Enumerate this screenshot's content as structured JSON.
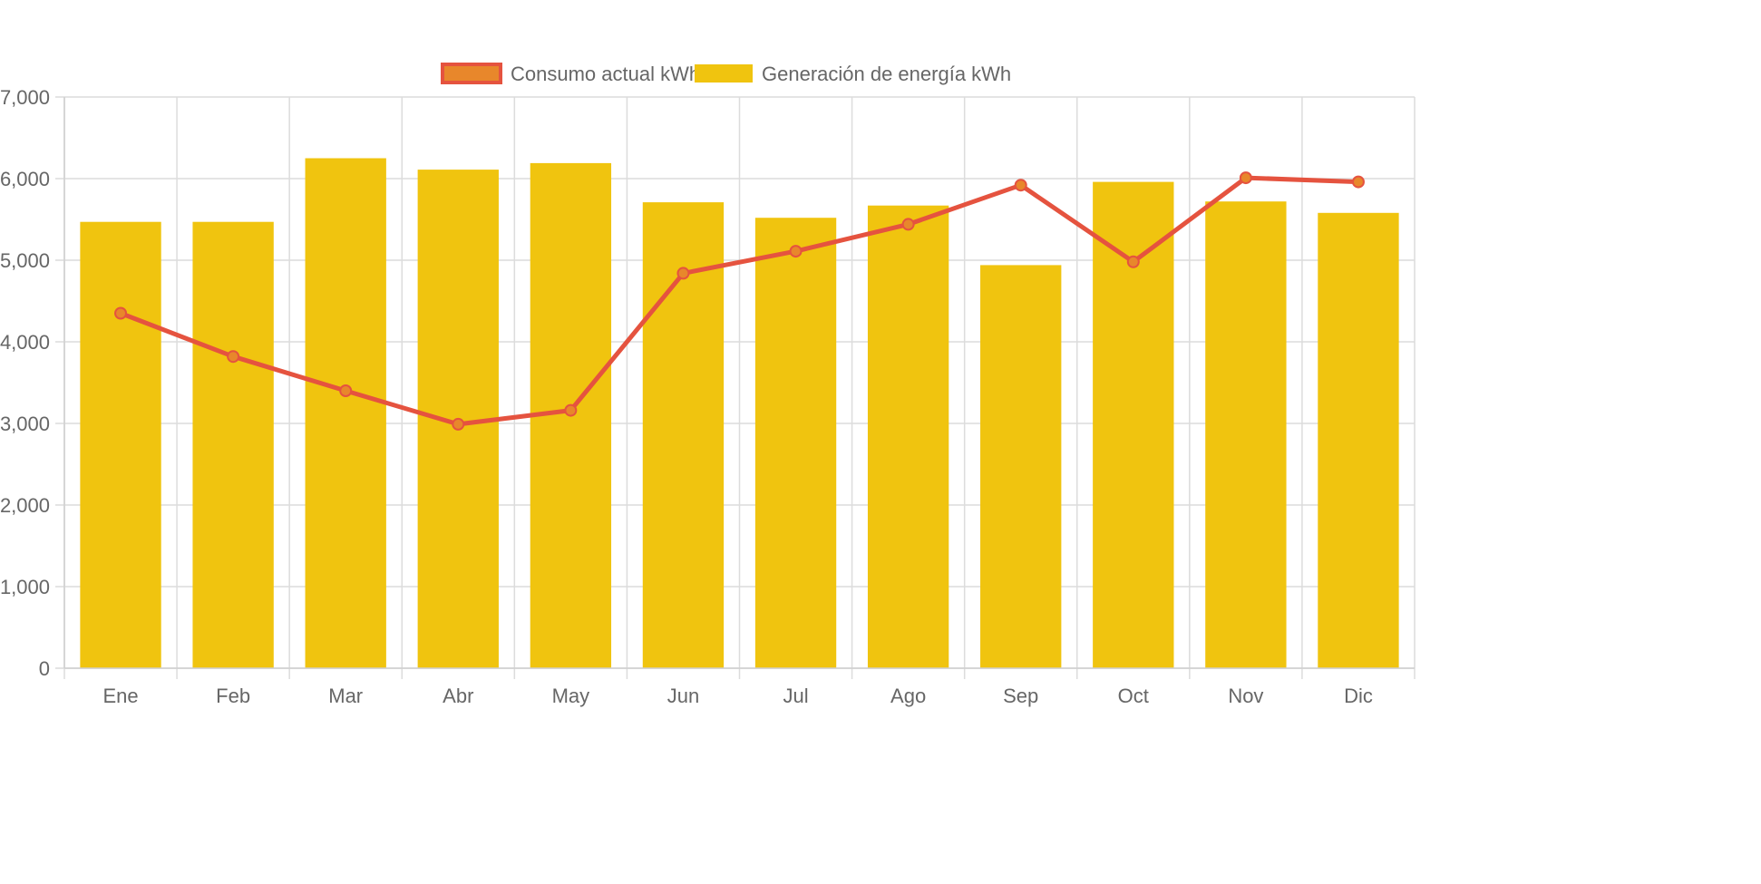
{
  "chart_data": {
    "type": "bar",
    "categories": [
      "Ene",
      "Feb",
      "Mar",
      "Abr",
      "May",
      "Jun",
      "Jul",
      "Ago",
      "Sep",
      "Oct",
      "Nov",
      "Dic"
    ],
    "series": [
      {
        "name": "Consumo actual kWh",
        "type": "line",
        "color": "#e5533f",
        "point_fill": "#e8872b",
        "values": [
          4350,
          3820,
          3400,
          2990,
          3160,
          4840,
          5110,
          5440,
          5920,
          4980,
          6010,
          5960
        ]
      },
      {
        "name": "Generación de energía kWh",
        "type": "bar",
        "color": "#f0c40f",
        "values": [
          5470,
          5470,
          6250,
          6110,
          6190,
          5710,
          5520,
          5670,
          4940,
          5960,
          5720,
          5580
        ]
      }
    ],
    "ylim": [
      0,
      7000
    ],
    "yticks": [
      0,
      1000,
      2000,
      3000,
      4000,
      5000,
      6000,
      7000
    ],
    "ytick_labels": [
      "0",
      "1,000",
      "2,000",
      "3,000",
      "4,000",
      "5,000",
      "6,000",
      "7,000"
    ],
    "grid": true,
    "legend_position": "top-center",
    "title": "",
    "xlabel": "",
    "ylabel": ""
  }
}
